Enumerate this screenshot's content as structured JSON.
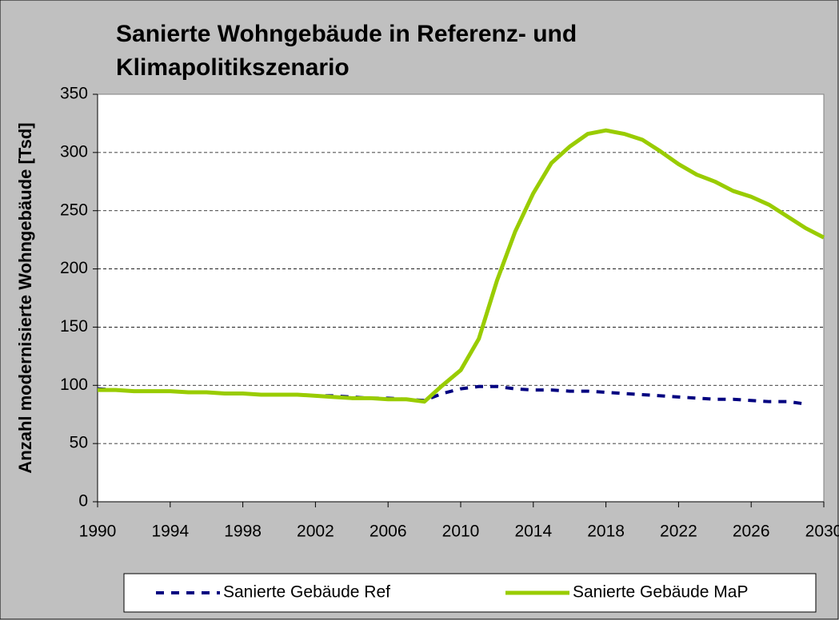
{
  "chart_data": {
    "type": "line",
    "title": [
      "Sanierte Wohngebäude in Referenz- und",
      "Klimapolitikszenario"
    ],
    "y_label": "Anzahl modernisierte Wohngebäude [Tsd]",
    "x": [
      1990,
      1991,
      1992,
      1993,
      1994,
      1995,
      1996,
      1997,
      1998,
      1999,
      2000,
      2001,
      2002,
      2003,
      2004,
      2005,
      2006,
      2007,
      2008,
      2009,
      2010,
      2011,
      2012,
      2013,
      2014,
      2015,
      2016,
      2017,
      2018,
      2019,
      2020,
      2021,
      2022,
      2023,
      2024,
      2025,
      2026,
      2027,
      2028,
      2029,
      2030
    ],
    "series": [
      {
        "name": "Sanierte Gebäude Ref",
        "color": "#000080",
        "dash": true,
        "values": [
          97,
          96,
          95,
          95,
          95,
          94,
          94,
          93,
          93,
          92,
          92,
          92,
          91,
          91,
          90,
          89,
          89,
          88,
          87,
          93,
          97,
          99,
          99,
          97,
          96,
          96,
          95,
          95,
          94,
          93,
          92,
          91,
          90,
          89,
          88,
          88,
          87,
          86,
          86,
          84,
          null
        ]
      },
      {
        "name": "Sanierte Gebäude MaP",
        "color": "#99cc00",
        "dash": false,
        "values": [
          96,
          96,
          95,
          95,
          95,
          94,
          94,
          93,
          93,
          92,
          92,
          92,
          91,
          90,
          89,
          89,
          88,
          88,
          86,
          100,
          113,
          140,
          190,
          232,
          265,
          291,
          305,
          316,
          319,
          316,
          311,
          301,
          290,
          281,
          275,
          267,
          262,
          255,
          245,
          235,
          227
        ]
      }
    ],
    "xlim": [
      1990,
      2030
    ],
    "xticks": [
      1990,
      1994,
      1998,
      2002,
      2006,
      2010,
      2014,
      2018,
      2022,
      2026,
      2030
    ],
    "ylim": [
      0,
      350
    ],
    "yticks": [
      0,
      50,
      100,
      150,
      200,
      250,
      300,
      350
    ],
    "grid": true,
    "legend": "bottom"
  }
}
